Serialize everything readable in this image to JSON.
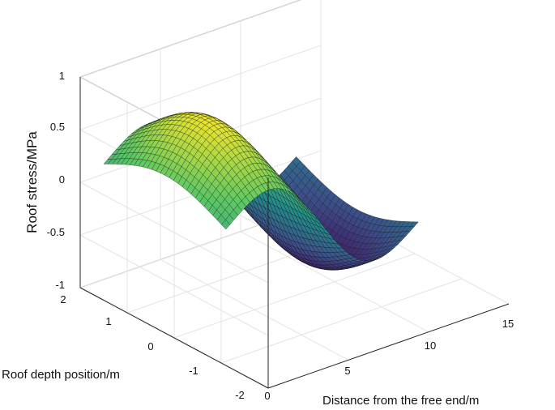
{
  "chart_data": {
    "type": "surface",
    "title": "",
    "xlabel": "Distance from the free end/m",
    "ylabel": "Roof depth position/m",
    "zlabel": "Roof stress/MPa",
    "x_ticks": [
      "0",
      "5",
      "10",
      "15"
    ],
    "y_ticks": [
      "-2",
      "-1",
      "0",
      "1",
      "2"
    ],
    "z_ticks": [
      "-1",
      "-0.5",
      "0",
      "0.5",
      "1"
    ],
    "xlim": [
      0,
      15
    ],
    "ylim": [
      -2,
      2
    ],
    "zlim": [
      -1,
      1
    ],
    "x_range": [
      0,
      12
    ],
    "y_range": [
      -1.1,
      1.5
    ],
    "peak": {
      "x": 3,
      "y": 0.2,
      "z": 0.95
    },
    "trough": {
      "x": 9,
      "y": 0.2,
      "z": -0.9
    },
    "colormap": [
      "#440154",
      "#3b528b",
      "#21918c",
      "#5ec962",
      "#fde725"
    ],
    "grid": true
  }
}
